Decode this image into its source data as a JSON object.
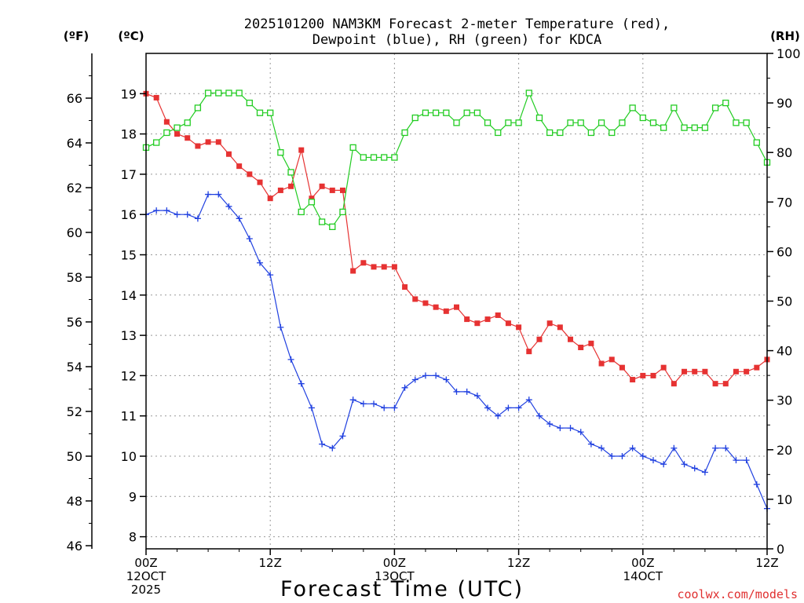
{
  "chart_data": {
    "type": "line",
    "title": [
      "2025101200 NAM3KM Forecast 2-meter Temperature (red),",
      "Dewpoint (blue), RH (green) for KDCA"
    ],
    "xlabel": "Forecast Time (UTC)",
    "credit": "coolwx.com/models",
    "axis_units": {
      "fahrenheit": "(ºF)",
      "celsius": "(ºC)",
      "rh": "(RH)"
    },
    "x_hours_range": [
      0,
      60
    ],
    "x_ticks": [
      {
        "hour": 0,
        "lines": [
          "00Z",
          "12OCT",
          "2025"
        ]
      },
      {
        "hour": 12,
        "lines": [
          "12Z"
        ]
      },
      {
        "hour": 24,
        "lines": [
          "00Z",
          "13OCT"
        ]
      },
      {
        "hour": 36,
        "lines": [
          "12Z"
        ]
      },
      {
        "hour": 48,
        "lines": [
          "00Z",
          "14OCT"
        ]
      },
      {
        "hour": 60,
        "lines": [
          "12Z"
        ]
      }
    ],
    "celsius_range": [
      7.7,
      20.0
    ],
    "celsius_ticks": [
      "8",
      "9",
      "10",
      "11",
      "12",
      "13",
      "14",
      "15",
      "16",
      "17",
      "18",
      "19"
    ],
    "fahrenheit_ticks": [
      "46",
      "48",
      "50",
      "52",
      "54",
      "56",
      "58",
      "60",
      "62",
      "64",
      "66"
    ],
    "rh_range": [
      0,
      100
    ],
    "rh_ticks": [
      "0",
      "10",
      "20",
      "30",
      "40",
      "50",
      "60",
      "70",
      "80",
      "90",
      "100"
    ],
    "grid": true,
    "series": [
      {
        "name": "2-meter Temperature",
        "unit": "°C",
        "axis": "celsius",
        "color": "#e63232",
        "marker": "filled-square",
        "values": [
          19.0,
          18.9,
          18.3,
          18.0,
          17.9,
          17.7,
          17.8,
          17.8,
          17.5,
          17.2,
          17.0,
          16.8,
          16.4,
          16.6,
          16.7,
          17.6,
          16.4,
          16.7,
          16.6,
          16.6,
          14.6,
          14.8,
          14.7,
          14.7,
          14.7,
          14.2,
          13.9,
          13.8,
          13.7,
          13.6,
          13.7,
          13.4,
          13.3,
          13.4,
          13.5,
          13.3,
          13.2,
          12.6,
          12.9,
          13.3,
          13.2,
          12.9,
          12.7,
          12.8,
          12.3,
          12.4,
          12.2,
          11.9,
          12.0,
          12.0,
          12.2,
          11.8,
          12.1,
          12.1,
          12.1,
          11.8,
          11.8,
          12.1,
          12.1,
          12.2,
          12.4
        ]
      },
      {
        "name": "Dewpoint",
        "unit": "°C",
        "axis": "celsius",
        "color": "#2040e0",
        "marker": "plus",
        "values": [
          16.0,
          16.1,
          16.1,
          16.0,
          16.0,
          15.9,
          16.5,
          16.5,
          16.2,
          15.9,
          15.4,
          14.8,
          14.5,
          13.2,
          12.4,
          11.8,
          11.2,
          10.3,
          10.2,
          10.5,
          11.4,
          11.3,
          11.3,
          11.2,
          11.2,
          11.7,
          11.9,
          12.0,
          12.0,
          11.9,
          11.6,
          11.6,
          11.5,
          11.2,
          11.0,
          11.2,
          11.2,
          11.4,
          11.0,
          10.8,
          10.7,
          10.7,
          10.6,
          10.3,
          10.2,
          10.0,
          10.0,
          10.2,
          10.0,
          9.9,
          9.8,
          10.2,
          9.8,
          9.7,
          9.6,
          10.2,
          10.2,
          9.9,
          9.9,
          9.3,
          8.7
        ]
      },
      {
        "name": "RH",
        "unit": "%",
        "axis": "rh",
        "color": "#22cc22",
        "marker": "open-square",
        "values": [
          81,
          82,
          84,
          85,
          86,
          89,
          92,
          92,
          92,
          92,
          90,
          88,
          88,
          80,
          76,
          68,
          70,
          66,
          65,
          68,
          81,
          79,
          79,
          79,
          79,
          84,
          87,
          88,
          88,
          88,
          86,
          88,
          88,
          86,
          84,
          86,
          86,
          92,
          87,
          84,
          84,
          86,
          86,
          84,
          86,
          84,
          86,
          89,
          87,
          86,
          85,
          89,
          85,
          85,
          85,
          89,
          90,
          86,
          86,
          82,
          78
        ]
      }
    ]
  }
}
